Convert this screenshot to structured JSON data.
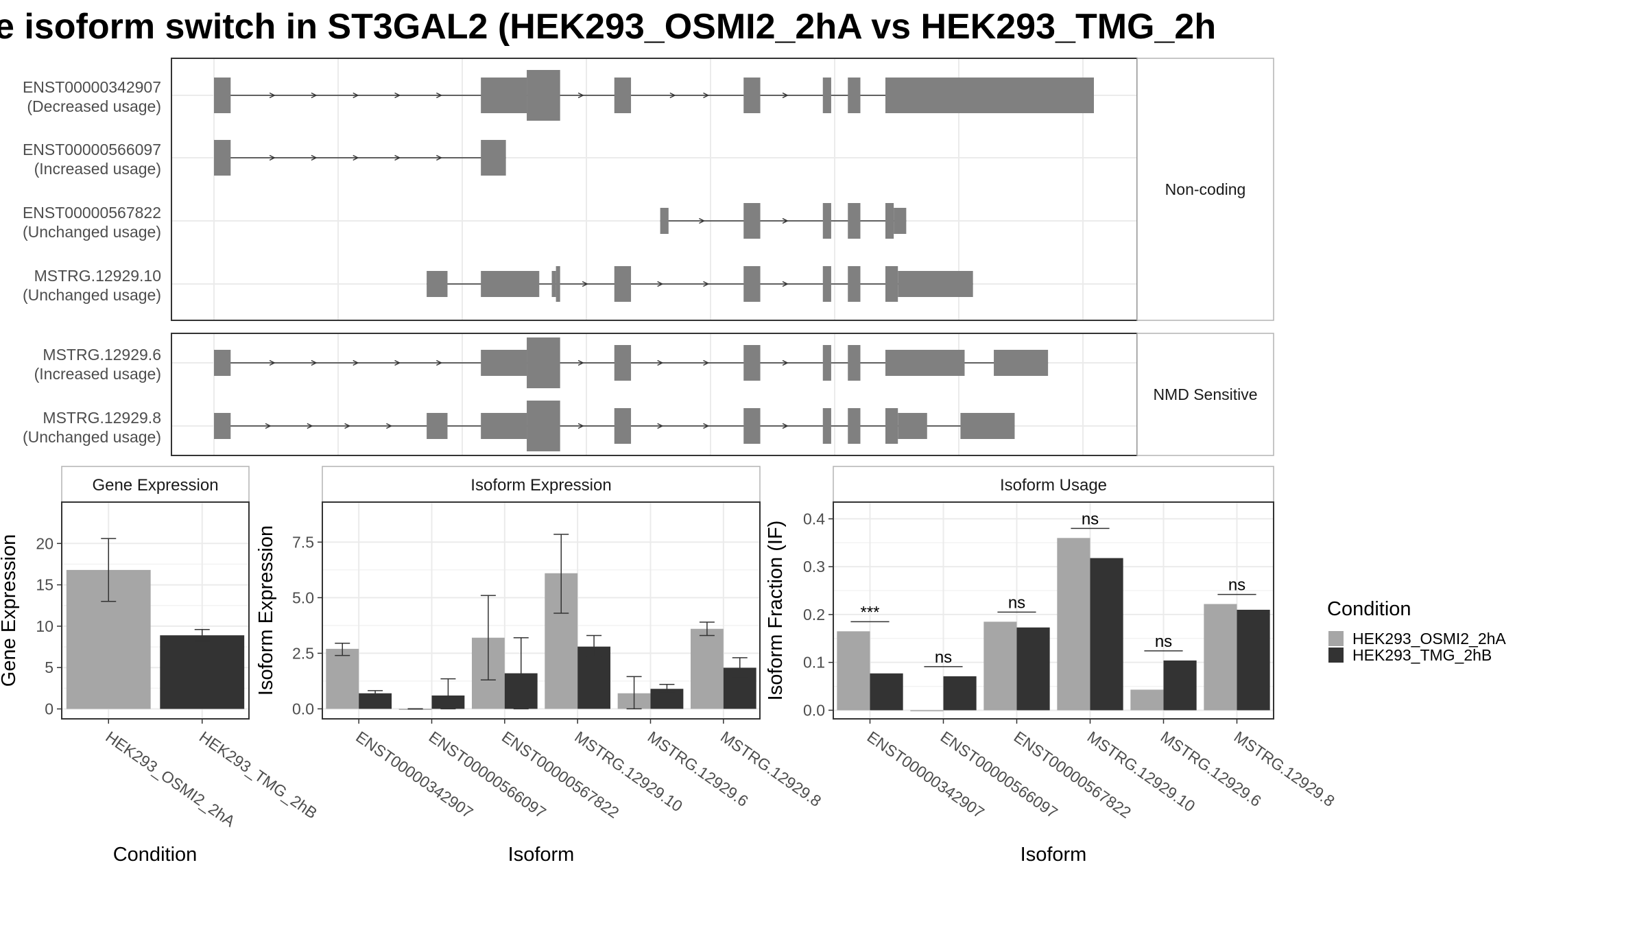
{
  "title": "e isoform switch in ST3GAL2 (HEK293_OSMI2_2hA vs HEK293_TMG_2h",
  "colors": {
    "condition_a": "#a6a6a6",
    "condition_b": "#333333",
    "exon": "#808080",
    "grid": "#ebebeb",
    "panel_border": "#333333",
    "strip_border": "#b3b3b3",
    "text": "#4d4d4d"
  },
  "structure": {
    "facets": [
      {
        "label": "Non-coding",
        "transcripts": [
          {
            "id": "ENST00000342907",
            "usage": "(Decreased usage)",
            "exons": [
              [
                0,
                4
              ],
              [
                64,
                75
              ],
              [
                75,
                83
              ],
              [
                96,
                100
              ],
              [
                127,
                131
              ],
              [
                146,
                148
              ],
              [
                152,
                155
              ],
              [
                161,
                211
              ]
            ],
            "exon_heights": [
              "thin",
              "thin",
              "thick",
              "thin",
              "thin",
              "thin",
              "thin",
              "thin"
            ],
            "arrows": [
              14,
              24,
              34,
              44,
              54,
              88,
              110,
              118,
              137
            ]
          },
          {
            "id": "ENST00000566097",
            "usage": "(Increased usage)",
            "exons": [
              [
                0,
                4
              ],
              [
                64,
                70
              ]
            ],
            "exon_heights": [
              "thin",
              "thin"
            ],
            "arrows": [
              14,
              24,
              34,
              44,
              54
            ]
          },
          {
            "id": "ENST00000567822",
            "usage": "(Unchanged usage)",
            "exons": [
              [
                107,
                109
              ],
              [
                127,
                131
              ],
              [
                146,
                148
              ],
              [
                152,
                155
              ],
              [
                161,
                163
              ],
              [
                163,
                166
              ]
            ],
            "exon_heights": [
              "small",
              "thin",
              "thin",
              "thin",
              "thin",
              "small"
            ],
            "arrows": [
              117,
              137
            ]
          },
          {
            "id": "MSTRG.12929.10",
            "usage": "(Unchanged usage)",
            "exons": [
              [
                51,
                56
              ],
              [
                64,
                78
              ],
              [
                81,
                82
              ],
              [
                82,
                83
              ],
              [
                96,
                100
              ],
              [
                127,
                131
              ],
              [
                146,
                148
              ],
              [
                152,
                155
              ],
              [
                161,
                164
              ],
              [
                164,
                182
              ]
            ],
            "exon_heights": [
              "small",
              "small",
              "small",
              "thin",
              "thin",
              "thin",
              "thin",
              "thin",
              "thin",
              "small"
            ],
            "arrows": [
              89,
              107,
              118,
              137
            ]
          }
        ]
      },
      {
        "label": "NMD Sensitive",
        "transcripts": [
          {
            "id": "MSTRG.12929.6",
            "usage": "(Increased usage)",
            "exons": [
              [
                0,
                4
              ],
              [
                64,
                75
              ],
              [
                75,
                83
              ],
              [
                96,
                100
              ],
              [
                127,
                131
              ],
              [
                146,
                148
              ],
              [
                152,
                155
              ],
              [
                161,
                180
              ],
              [
                187,
                200
              ]
            ],
            "exon_heights": [
              "small",
              "small",
              "thick",
              "thin",
              "thin",
              "thin",
              "thin",
              "small",
              "small"
            ],
            "arrows": [
              14,
              24,
              34,
              44,
              54,
              88,
              107,
              118,
              137
            ]
          },
          {
            "id": "MSTRG.12929.8",
            "usage": "(Unchanged usage)",
            "exons": [
              [
                0,
                4
              ],
              [
                51,
                56
              ],
              [
                64,
                75
              ],
              [
                75,
                83
              ],
              [
                96,
                100
              ],
              [
                127,
                131
              ],
              [
                146,
                148
              ],
              [
                152,
                155
              ],
              [
                161,
                164
              ],
              [
                164,
                171
              ],
              [
                179,
                192
              ]
            ],
            "exon_heights": [
              "small",
              "small",
              "small",
              "thick",
              "thin",
              "thin",
              "thin",
              "thin",
              "thin",
              "small",
              "small"
            ],
            "arrows": [
              13,
              23,
              32,
              42,
              88,
              107,
              118,
              137
            ]
          }
        ]
      }
    ]
  },
  "legend": {
    "title": "Condition",
    "items": [
      {
        "label": "HEK293_OSMI2_2hA",
        "color": "#a6a6a6"
      },
      {
        "label": "HEK293_TMG_2hB",
        "color": "#333333"
      }
    ]
  },
  "chart_data": [
    {
      "type": "bar",
      "title": "Gene Expression",
      "xlabel": "Condition",
      "ylabel": "Gene Expression",
      "categories": [
        "HEK293_OSMI2_2hA",
        "HEK293_TMG_2hB"
      ],
      "values": [
        16.8,
        8.9
      ],
      "error_low": [
        13.0,
        8.2
      ],
      "error_high": [
        20.6,
        9.6
      ],
      "ylim": [
        -1.2,
        25
      ],
      "yticks": [
        0,
        5,
        10,
        15,
        20
      ],
      "ytick_labels": [
        "0",
        "5",
        "10",
        "15",
        "20"
      ]
    },
    {
      "type": "bar",
      "title": "Isoform Expression",
      "xlabel": "Isoform",
      "ylabel": "Isoform Expression",
      "categories": [
        "ENST00000342907",
        "ENST00000566097",
        "ENST00000567822",
        "MSTRG.12929.10",
        "MSTRG.12929.6",
        "MSTRG.12929.8"
      ],
      "series": [
        {
          "name": "HEK293_OSMI2_2hA",
          "values": [
            2.7,
            0.0,
            3.2,
            6.1,
            0.7,
            3.6
          ],
          "error_low": [
            2.4,
            0.0,
            1.3,
            4.3,
            0.0,
            3.3
          ],
          "error_high": [
            2.95,
            0.0,
            5.1,
            7.85,
            1.45,
            3.9
          ]
        },
        {
          "name": "HEK293_TMG_2hB",
          "values": [
            0.7,
            0.6,
            1.6,
            2.8,
            0.9,
            1.85
          ],
          "error_low": [
            0.58,
            0.0,
            0.0,
            2.35,
            0.72,
            1.4
          ],
          "error_high": [
            0.82,
            1.35,
            3.2,
            3.3,
            1.1,
            2.3
          ]
        }
      ],
      "ylim": [
        -0.45,
        9.3
      ],
      "yticks": [
        0,
        2.5,
        5,
        7.5
      ],
      "ytick_labels": [
        "0.0",
        "2.5",
        "5.0",
        "7.5"
      ]
    },
    {
      "type": "bar",
      "title": "Isoform Usage",
      "xlabel": "Isoform",
      "ylabel": "Isoform Fraction (IF)",
      "categories": [
        "ENST00000342907",
        "ENST00000566097",
        "ENST00000567822",
        "MSTRG.12929.10",
        "MSTRG.12929.6",
        "MSTRG.12929.8"
      ],
      "series": [
        {
          "name": "HEK293_OSMI2_2hA",
          "values": [
            0.165,
            0.0,
            0.185,
            0.36,
            0.043,
            0.222
          ]
        },
        {
          "name": "HEK293_TMG_2hB",
          "values": [
            0.077,
            0.071,
            0.173,
            0.318,
            0.104,
            0.21
          ]
        }
      ],
      "significance": [
        "***",
        "ns",
        "ns",
        "ns",
        "ns",
        "ns"
      ],
      "ylim": [
        -0.018,
        0.435
      ],
      "yticks": [
        0,
        0.1,
        0.2,
        0.3,
        0.4
      ],
      "ytick_labels": [
        "0.0",
        "0.1",
        "0.2",
        "0.3",
        "0.4"
      ]
    }
  ]
}
